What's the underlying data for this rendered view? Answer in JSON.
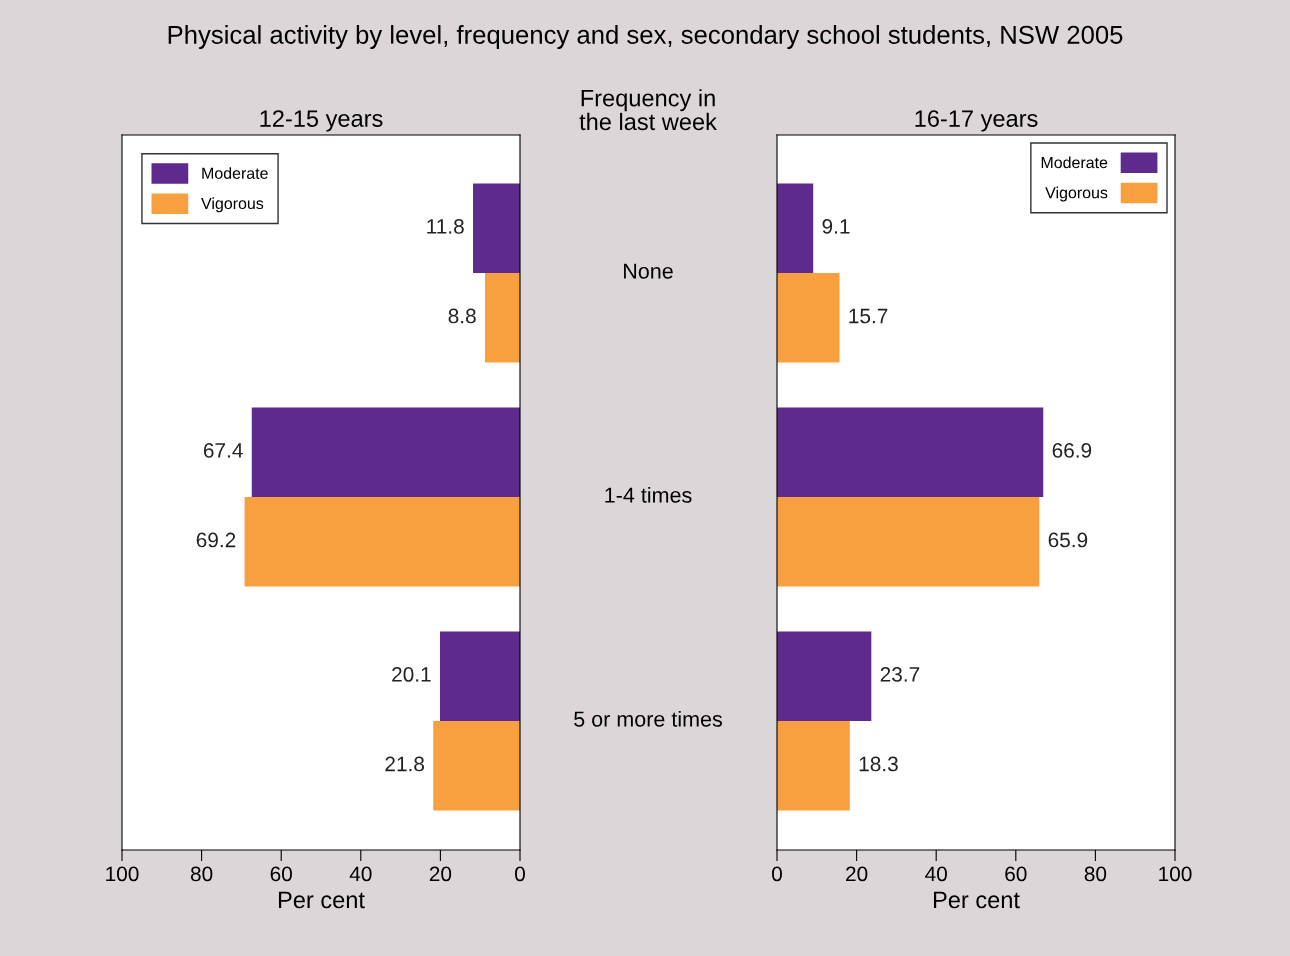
{
  "chart_data": [
    {
      "type": "bar",
      "orientation": "horizontal",
      "title": "Physical activity by level, frequency and sex, secondary school students, NSW 2005",
      "subtitle": "12-15 years",
      "ylabel": "Frequency in\nthe last week",
      "xlabel": "Per cent",
      "categories": [
        "None",
        "1-4 times",
        "5 or more times"
      ],
      "series": [
        {
          "name": "Moderate",
          "color": "#5e2a8e",
          "values": [
            11.8,
            67.4,
            20.1
          ]
        },
        {
          "name": "Vigorous",
          "color": "#f8a040",
          "values": [
            8.8,
            69.2,
            21.8
          ]
        }
      ],
      "xlim": [
        100,
        0
      ],
      "xticks": [
        100,
        80,
        60,
        40,
        20,
        0
      ],
      "data_labels": true,
      "legend": "top left",
      "grid": false,
      "tick_labels": "x"
    },
    {
      "type": "bar",
      "orientation": "horizontal",
      "subtitle": "16-17 years",
      "xlabel": "Per cent",
      "categories": [
        null,
        null,
        null
      ],
      "series": [
        {
          "name": "Moderate",
          "color": "#5e2a8e",
          "values": [
            9.1,
            66.9,
            23.7
          ]
        },
        {
          "name": "Vigorous",
          "color": "#f8a040",
          "values": [
            15.7,
            65.9,
            18.3
          ]
        }
      ],
      "xlim": [
        0,
        100
      ],
      "xticks": [
        0,
        20,
        40,
        60,
        80,
        100
      ],
      "data_labels": true,
      "legend": "top right",
      "grid": false,
      "tick_labels": "x"
    }
  ]
}
